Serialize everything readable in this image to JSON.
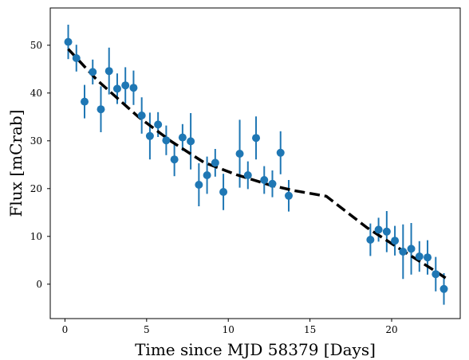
{
  "chart_data": {
    "type": "scatter",
    "title": "",
    "xlabel": "Time since MJD 58379 [Days]",
    "ylabel": "Flux [mCrab]",
    "xlim": [
      -0.9,
      24.2
    ],
    "ylim": [
      -7.2,
      57.8
    ],
    "xticks": [
      0,
      5,
      10,
      15,
      20
    ],
    "yticks": [
      0,
      10,
      20,
      30,
      40,
      50
    ],
    "grid": false,
    "legend": "none",
    "colors": {
      "points": "#1f77b4",
      "model": "#000000"
    },
    "series": [
      {
        "type": "errorbar-scatter",
        "points": [
          {
            "x": 0.2,
            "y": 50.7,
            "err": 3.6
          },
          {
            "x": 0.7,
            "y": 47.3,
            "err": 2.8
          },
          {
            "x": 1.2,
            "y": 38.2,
            "err": 3.5
          },
          {
            "x": 1.7,
            "y": 44.4,
            "err": 2.6
          },
          {
            "x": 2.2,
            "y": 36.6,
            "err": 4.8
          },
          {
            "x": 2.7,
            "y": 44.6,
            "err": 4.9
          },
          {
            "x": 3.2,
            "y": 40.9,
            "err": 3.2
          },
          {
            "x": 3.7,
            "y": 41.6,
            "err": 3.8
          },
          {
            "x": 4.2,
            "y": 41.1,
            "err": 3.6
          },
          {
            "x": 4.7,
            "y": 35.3,
            "err": 3.8
          },
          {
            "x": 5.2,
            "y": 31.0,
            "err": 4.9
          },
          {
            "x": 5.7,
            "y": 33.4,
            "err": 2.6
          },
          {
            "x": 6.2,
            "y": 30.1,
            "err": 3.1
          },
          {
            "x": 6.7,
            "y": 26.1,
            "err": 3.5
          },
          {
            "x": 7.2,
            "y": 30.7,
            "err": 2.8
          },
          {
            "x": 7.7,
            "y": 29.9,
            "err": 5.9
          },
          {
            "x": 8.2,
            "y": 20.8,
            "err": 4.5
          },
          {
            "x": 8.7,
            "y": 22.8,
            "err": 3.9
          },
          {
            "x": 9.2,
            "y": 25.4,
            "err": 2.9
          },
          {
            "x": 9.7,
            "y": 19.3,
            "err": 3.8
          },
          {
            "x": 10.7,
            "y": 27.3,
            "err": 7.1
          },
          {
            "x": 11.2,
            "y": 22.8,
            "err": 2.9
          },
          {
            "x": 11.7,
            "y": 30.6,
            "err": 4.5
          },
          {
            "x": 12.2,
            "y": 21.8,
            "err": 2.9
          },
          {
            "x": 12.7,
            "y": 21.0,
            "err": 2.8
          },
          {
            "x": 13.2,
            "y": 27.5,
            "err": 4.5
          },
          {
            "x": 13.7,
            "y": 18.5,
            "err": 3.3
          },
          {
            "x": 18.7,
            "y": 9.3,
            "err": 3.4
          },
          {
            "x": 19.2,
            "y": 11.4,
            "err": 2.5
          },
          {
            "x": 19.7,
            "y": 11.0,
            "err": 4.3
          },
          {
            "x": 20.2,
            "y": 9.1,
            "err": 3.1
          },
          {
            "x": 20.7,
            "y": 6.8,
            "err": 5.7
          },
          {
            "x": 21.2,
            "y": 7.4,
            "err": 5.4
          },
          {
            "x": 21.7,
            "y": 5.8,
            "err": 3.2
          },
          {
            "x": 22.2,
            "y": 5.6,
            "err": 3.6
          },
          {
            "x": 22.7,
            "y": 2.1,
            "err": 3.6
          },
          {
            "x": 23.2,
            "y": -1.0,
            "err": 3.3
          }
        ]
      },
      {
        "type": "line",
        "style": "dashed",
        "x": [
          0.2,
          2.0,
          4.5,
          6.5,
          8.5,
          10.5,
          12.5,
          14.0,
          16.0,
          18.5,
          20.5,
          22.5,
          23.3
        ],
        "y": [
          49.2,
          42.6,
          35.0,
          29.9,
          25.5,
          22.9,
          20.8,
          19.6,
          18.4,
          11.8,
          7.4,
          3.1,
          1.3
        ]
      }
    ]
  }
}
